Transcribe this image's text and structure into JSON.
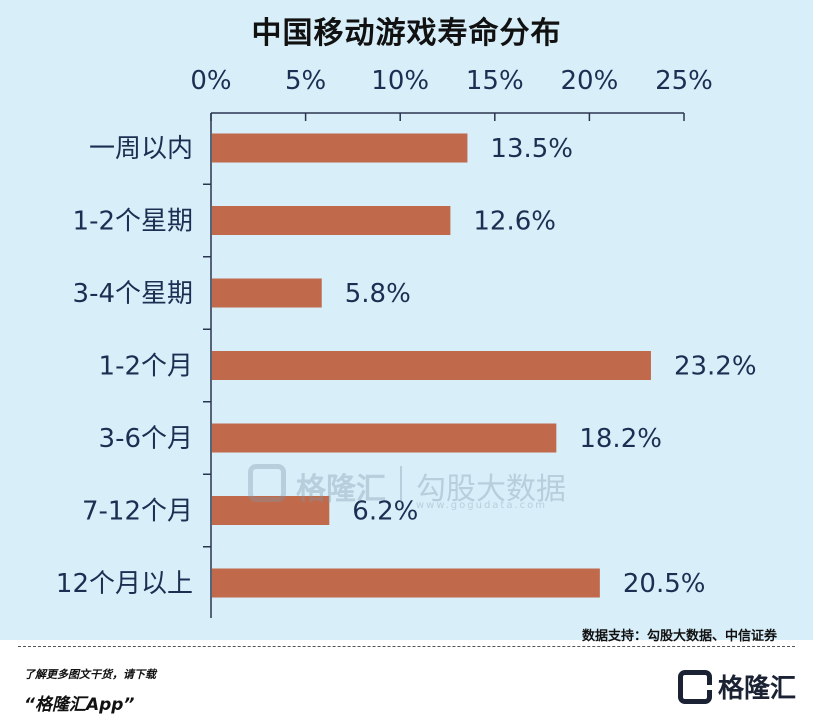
{
  "chart_data": {
    "type": "bar",
    "orientation": "horizontal",
    "title": "中国移动游戏寿命分布",
    "categories": [
      "一周以内",
      "1-2个星期",
      "3-4个星期",
      "1-2个月",
      "3-6个月",
      "7-12个月",
      "12个月以上"
    ],
    "values": [
      13.5,
      12.6,
      5.8,
      23.2,
      18.2,
      6.2,
      20.5
    ],
    "value_labels": [
      "13.5%",
      "12.6%",
      "5.8%",
      "23.2%",
      "18.2%",
      "6.2%",
      "20.5%"
    ],
    "xlim": [
      0,
      25
    ],
    "x_ticks": [
      "0%",
      "5%",
      "10%",
      "15%",
      "20%",
      "25%"
    ],
    "x_axis_position": "top",
    "grid": false,
    "bar_color": "#c16a4b",
    "background_color": "#d8eef9"
  },
  "watermark": {
    "name": "格隆汇",
    "brand": "勾股大数据",
    "url": "www.gogudata.com"
  },
  "source": "数据支持：勾股大数据、中信证券",
  "footer": {
    "line1": "了解更多图文干货，请下载",
    "line2": "“格隆汇App”",
    "logo_text": "格隆汇",
    "logo_icon": "gelonghui-logo-icon"
  }
}
